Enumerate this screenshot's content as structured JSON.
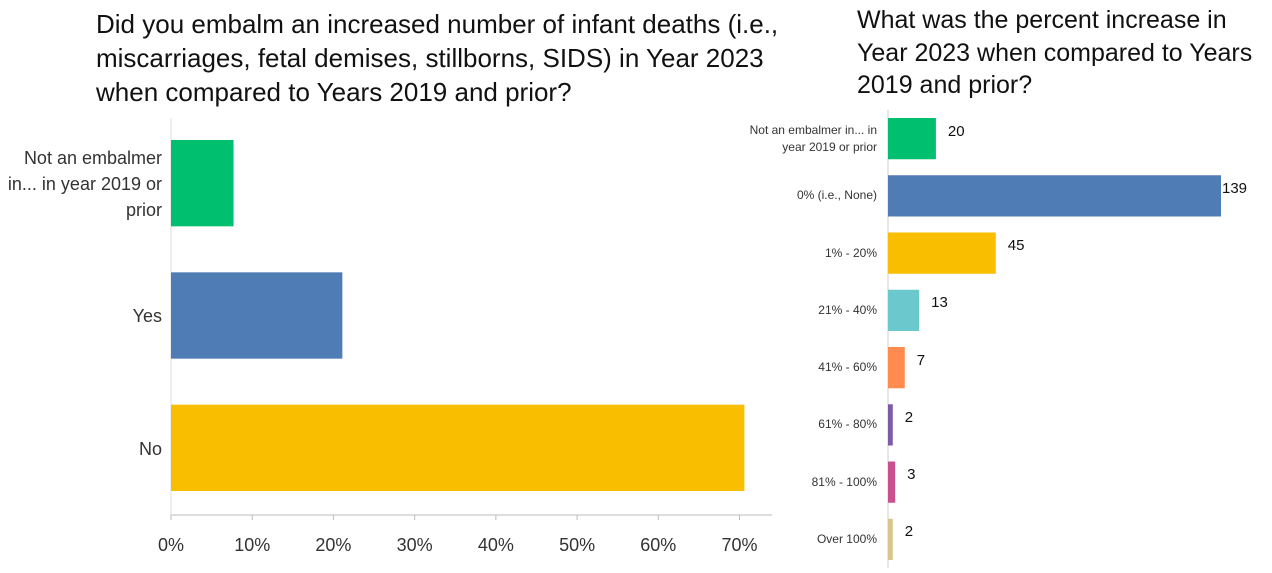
{
  "chart_data": [
    {
      "type": "bar",
      "orientation": "horizontal",
      "title": "Did you embalm an increased number of infant deaths (i.e., miscarriages, fetal demises, stillborns, SIDS) in Year 2023 when compared to Years 2019 and prior?",
      "categories": [
        "Not an embalmer in... in year 2019 or prior",
        "Yes",
        "No"
      ],
      "values": [
        7.7,
        21.1,
        70.6
      ],
      "colors": [
        "#00bf6f",
        "#507cb6",
        "#f9be00"
      ],
      "xlim": [
        0,
        74
      ],
      "xticks": [
        {
          "value": 0,
          "label": "0%"
        },
        {
          "value": 10,
          "label": "10%"
        },
        {
          "value": 20,
          "label": "20%"
        },
        {
          "value": 30,
          "label": "30%"
        },
        {
          "value": 40,
          "label": "40%"
        },
        {
          "value": 50,
          "label": "50%"
        },
        {
          "value": 60,
          "label": "60%"
        },
        {
          "value": 70,
          "label": "70%"
        }
      ]
    },
    {
      "type": "bar",
      "orientation": "horizontal",
      "title": "What was the percent increase in Year 2023 when compared to Years 2019 and prior?",
      "categories": [
        "Not an embalmer in... in year 2019 or prior",
        "0% (i.e., None)",
        "1% - 20%",
        "21% - 40%",
        "41% - 60%",
        "61% - 80%",
        "81% - 100%",
        "Over 100%"
      ],
      "values": [
        20,
        139,
        45,
        13,
        7,
        2,
        3,
        2
      ],
      "colors": [
        "#00bf6f",
        "#507cb6",
        "#f9be00",
        "#6bc8cd",
        "#ff8b4f",
        "#7d5ba6",
        "#c94f8e",
        "#d9c68f"
      ]
    }
  ]
}
